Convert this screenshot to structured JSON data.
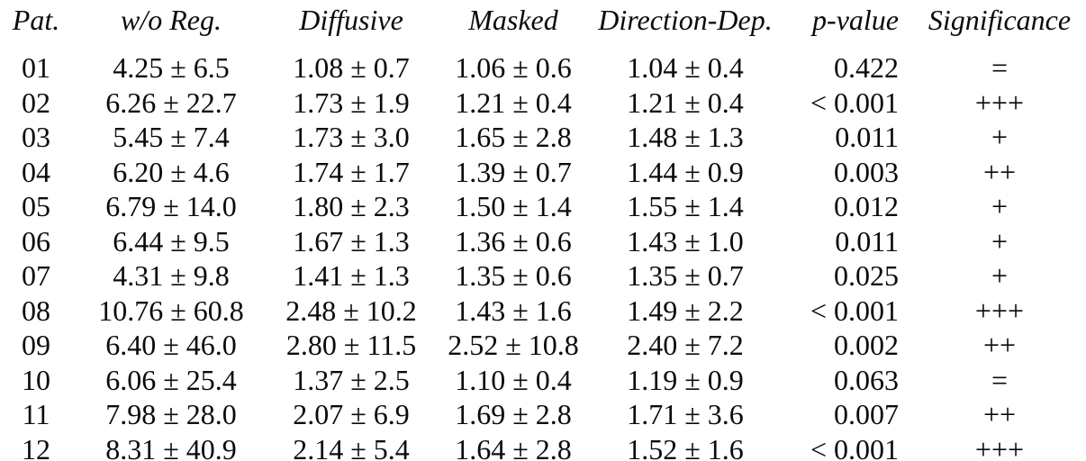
{
  "page": {
    "background_color": "#ffffff",
    "text_color": "#0b0b0b"
  },
  "table": {
    "columns": [
      "Pat.",
      "w/o Reg.",
      "Diffusive",
      "Masked",
      "Direction-Dep.",
      "p-value",
      "Significance"
    ],
    "rows": [
      [
        "01",
        "4.25 ± 6.5",
        "1.08 ± 0.7",
        "1.06 ± 0.6",
        "1.04 ± 0.4",
        "0.422",
        "="
      ],
      [
        "02",
        "6.26 ± 22.7",
        "1.73 ± 1.9",
        "1.21 ± 0.4",
        "1.21 ± 0.4",
        "< 0.001",
        "+++"
      ],
      [
        "03",
        "5.45 ± 7.4",
        "1.73 ± 3.0",
        "1.65 ± 2.8",
        "1.48 ± 1.3",
        "0.011",
        "+"
      ],
      [
        "04",
        "6.20 ± 4.6",
        "1.74 ± 1.7",
        "1.39 ± 0.7",
        "1.44 ± 0.9",
        "0.003",
        "++"
      ],
      [
        "05",
        "6.79 ± 14.0",
        "1.80 ± 2.3",
        "1.50 ± 1.4",
        "1.55 ± 1.4",
        "0.012",
        "+"
      ],
      [
        "06",
        "6.44 ± 9.5",
        "1.67 ± 1.3",
        "1.36 ± 0.6",
        "1.43 ± 1.0",
        "0.011",
        "+"
      ],
      [
        "07",
        "4.31 ± 9.8",
        "1.41 ± 1.3",
        "1.35 ± 0.6",
        "1.35 ± 0.7",
        "0.025",
        "+"
      ],
      [
        "08",
        "10.76 ± 60.8",
        "2.48 ± 10.2",
        "1.43 ± 1.6",
        "1.49 ± 2.2",
        "< 0.001",
        "+++"
      ],
      [
        "09",
        "6.40 ± 46.0",
        "2.80 ± 11.5",
        "2.52 ± 10.8",
        "2.40 ± 7.2",
        "0.002",
        "++"
      ],
      [
        "10",
        "6.06 ± 25.4",
        "1.37 ± 2.5",
        "1.10 ± 0.4",
        "1.19 ± 0.9",
        "0.063",
        "="
      ],
      [
        "11",
        "7.98 ± 28.0",
        "2.07 ± 6.9",
        "1.69 ± 2.8",
        "1.71 ± 3.6",
        "0.007",
        "++"
      ],
      [
        "12",
        "8.31 ± 40.9",
        "2.14 ± 5.4",
        "1.64 ± 2.8",
        "1.52 ± 1.6",
        "< 0.001",
        "+++"
      ]
    ]
  }
}
